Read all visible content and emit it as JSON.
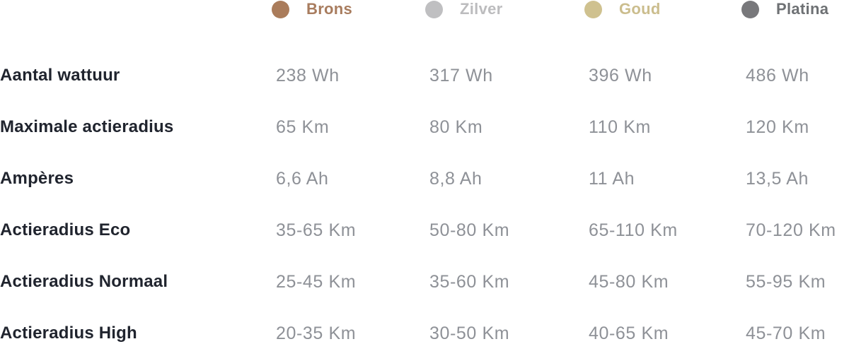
{
  "header": {
    "columns": [
      {
        "label": "Brons",
        "text_color": "#a87c5e",
        "dot_color": "#aa7c5b"
      },
      {
        "label": "Zilver",
        "text_color": "#bcbcbe",
        "dot_color": "#bfbfc1"
      },
      {
        "label": "Goud",
        "text_color": "#cbbd8d",
        "dot_color": "#cfc18f"
      },
      {
        "label": "Platina",
        "text_color": "#6e7174",
        "dot_color": "#78787b"
      }
    ]
  },
  "rows": [
    {
      "label": "Aantal wattuur",
      "values": [
        "238 Wh",
        "317 Wh",
        "396 Wh",
        "486 Wh"
      ]
    },
    {
      "label": "Maximale actieradius",
      "values": [
        "65 Km",
        "80 Km",
        "110 Km",
        "120 Km"
      ]
    },
    {
      "label": "Ampères",
      "values": [
        "6,6 Ah",
        "8,8 Ah",
        "11 Ah",
        "13,5 Ah"
      ]
    },
    {
      "label": "Actieradius Eco",
      "values": [
        "35-65 Km",
        "50-80 Km",
        "65-110 Km",
        "70-120 Km"
      ]
    },
    {
      "label": "Actieradius Normaal",
      "values": [
        "25-45 Km",
        "35-60 Km",
        "45-80 Km",
        "55-95 Km"
      ]
    },
    {
      "label": "Actieradius High",
      "values": [
        "20-35 Km",
        "30-50 Km",
        "40-65 Km",
        "45-70 Km"
      ]
    }
  ],
  "chart_data": {
    "type": "table",
    "columns": [
      "",
      "Brons",
      "Zilver",
      "Goud",
      "Platina"
    ],
    "rows": [
      [
        "Aantal wattuur",
        "238 Wh",
        "317 Wh",
        "396 Wh",
        "486 Wh"
      ],
      [
        "Maximale actieradius",
        "65 Km",
        "80 Km",
        "110 Km",
        "120 Km"
      ],
      [
        "Ampères",
        "6,6 Ah",
        "8,8 Ah",
        "11 Ah",
        "13,5 Ah"
      ],
      [
        "Actieradius Eco",
        "35-65 Km",
        "50-80 Km",
        "65-110 Km",
        "70-120 Km"
      ],
      [
        "Actieradius Normaal",
        "25-45 Km",
        "35-60 Km",
        "45-80 Km",
        "55-95 Km"
      ],
      [
        "Actieradius High",
        "20-35 Km",
        "30-50 Km",
        "40-65 Km",
        "45-70 Km"
      ]
    ],
    "legend_colors": {
      "Brons": "#aa7c5b",
      "Zilver": "#bfbfc1",
      "Goud": "#cfc18f",
      "Platina": "#78787b"
    }
  }
}
